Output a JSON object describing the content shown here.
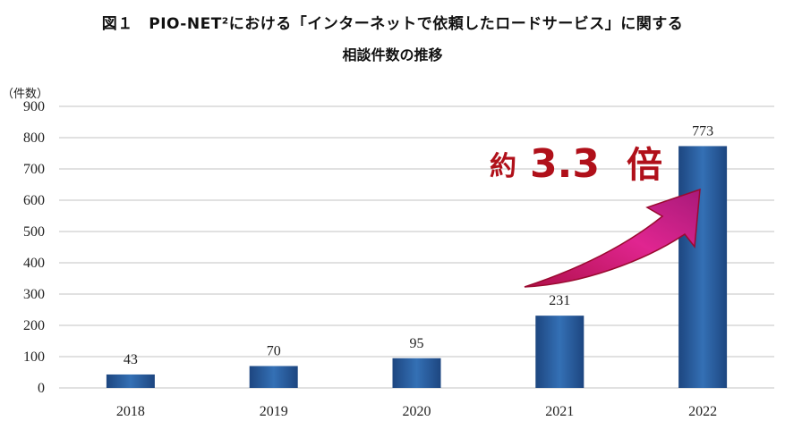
{
  "title_line1": "図１　PIO-NET²における「インターネットで依頼したロードサービス」に関する",
  "title_line2": "相談件数の推移",
  "chart_data": {
    "type": "bar",
    "title": "図１　PIO-NET²における「インターネットで依頼したロードサービス」に関する相談件数の推移",
    "xlabel": "",
    "ylabel": "（件数）",
    "categories": [
      "2018",
      "2019",
      "2020",
      "2021",
      "2022"
    ],
    "values": [
      43,
      70,
      95,
      231,
      773
    ],
    "value_labels": [
      "43",
      "70",
      "95",
      "231",
      "773"
    ],
    "ylim": [
      0,
      900
    ],
    "yticks": [
      0,
      100,
      200,
      300,
      400,
      500,
      600,
      700,
      800,
      900
    ],
    "ytick_labels": [
      "0",
      "100",
      "200",
      "300",
      "400",
      "500",
      "600",
      "700",
      "800",
      "900"
    ],
    "grid": true,
    "annotation": {
      "prefix": "約",
      "number": "3.3",
      "suffix": "倍",
      "from_category": "2021",
      "to_category": "2022"
    },
    "colors": {
      "bar": "#2a5a9a",
      "bar_dark": "#1d4680",
      "arrow": "#e0207f",
      "arrow_edge": "#a0103a",
      "annotation_text": "#b0101a",
      "grid": "#cfcfcf"
    }
  }
}
